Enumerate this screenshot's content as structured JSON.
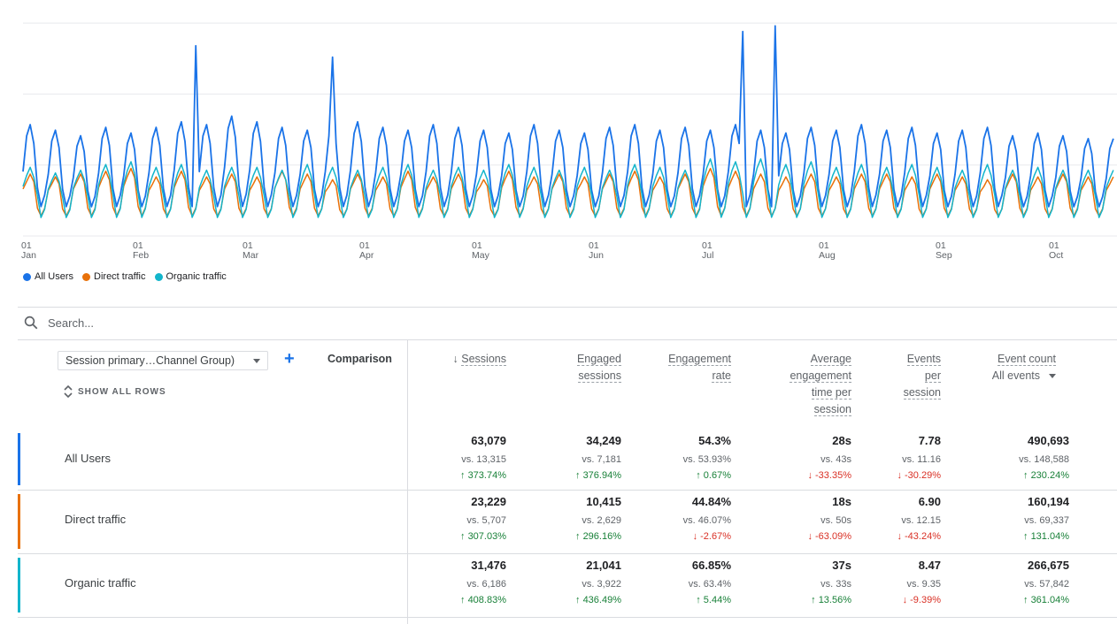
{
  "chart_data": {
    "type": "line",
    "x_ticks": [
      {
        "day": "01",
        "month": "Jan"
      },
      {
        "day": "01",
        "month": "Feb"
      },
      {
        "day": "01",
        "month": "Mar"
      },
      {
        "day": "01",
        "month": "Apr"
      },
      {
        "day": "01",
        "month": "May"
      },
      {
        "day": "01",
        "month": "Jun"
      },
      {
        "day": "01",
        "month": "Jul"
      },
      {
        "day": "01",
        "month": "Aug"
      },
      {
        "day": "01",
        "month": "Sep"
      },
      {
        "day": "01",
        "month": "Oct"
      }
    ],
    "x_start": "Jan 1",
    "x_end": "Oct 31",
    "y_min": 0,
    "y_max": 5,
    "grid": "horizontal",
    "legend_placement": "bottom-left",
    "series": [
      {
        "name": "All Users",
        "color": "#1a73e8",
        "weekly_peaks": [
          3.9,
          3.7,
          3.5,
          3.8,
          3.6,
          3.8,
          4.0,
          3.9,
          4.2,
          4.0,
          3.8,
          3.7,
          3.9,
          4.0,
          3.8,
          3.7,
          3.9,
          3.8,
          3.7,
          3.6,
          3.9,
          3.7,
          3.6,
          3.8,
          3.9,
          3.7,
          3.8,
          3.7,
          3.9,
          3.7,
          3.6,
          3.8,
          3.7,
          3.9,
          3.7,
          3.8,
          3.6,
          3.7,
          3.8,
          3.5,
          3.6,
          3.5,
          3.4
        ],
        "spikes": [
          {
            "date": "Feb 18",
            "value": 6.7
          },
          {
            "date": "Mar 28",
            "value": 6.3
          },
          {
            "date": "Jul 20",
            "value": 7.2
          },
          {
            "date": "Jul 29",
            "value": 7.4
          }
        ]
      },
      {
        "name": "Direct traffic",
        "color": "#e8710a",
        "weekly_peaks": [
          2.2,
          2.1,
          2.2,
          2.3,
          2.4,
          2.1,
          2.3,
          2.1,
          2.2,
          2.1,
          2.3,
          2.2,
          2.0,
          2.2,
          2.1,
          2.3,
          2.1,
          2.2,
          2.0,
          2.3,
          2.1,
          2.2,
          2.1,
          2.2,
          2.3,
          2.1,
          2.2,
          2.4,
          2.3,
          2.2,
          2.1,
          2.2,
          2.1,
          2.2,
          2.2,
          2.1,
          2.2,
          2.1,
          2.0,
          2.2,
          2.1,
          2.2,
          2.1
        ]
      },
      {
        "name": "Organic traffic",
        "color": "#12b5cb",
        "weekly_peaks": [
          2.5,
          2.3,
          2.4,
          2.6,
          2.7,
          2.5,
          2.6,
          2.4,
          2.5,
          2.5,
          2.4,
          2.6,
          2.5,
          2.4,
          2.5,
          2.6,
          2.4,
          2.5,
          2.4,
          2.6,
          2.5,
          2.4,
          2.5,
          2.4,
          2.6,
          2.5,
          2.4,
          2.8,
          2.7,
          2.8,
          2.6,
          2.7,
          2.5,
          2.6,
          2.5,
          2.6,
          2.5,
          2.4,
          2.6,
          2.4,
          2.5,
          2.4,
          2.4
        ]
      }
    ]
  },
  "search": {
    "placeholder": "Search..."
  },
  "dimension_select": {
    "value": "Session primary…Channel Group)"
  },
  "comparison_label": "Comparison",
  "show_all_rows": "SHOW ALL ROWS",
  "columns": [
    {
      "lines": [
        "Sessions"
      ],
      "sort": "desc"
    },
    {
      "lines": [
        "Engaged",
        "sessions"
      ]
    },
    {
      "lines": [
        "Engagement",
        "rate"
      ]
    },
    {
      "lines": [
        "Average",
        "engagement",
        "time per",
        "session"
      ]
    },
    {
      "lines": [
        "Events",
        "per",
        "session"
      ]
    },
    {
      "lines": [
        "Event count"
      ],
      "sub": "All events"
    }
  ],
  "rows": [
    {
      "label": "All Users",
      "color": "#1a73e8",
      "cells": [
        {
          "value": "63,079",
          "vs": "vs. 13,315",
          "change": "373.74%",
          "dir": "up"
        },
        {
          "value": "34,249",
          "vs": "vs. 7,181",
          "change": "376.94%",
          "dir": "up"
        },
        {
          "value": "54.3%",
          "vs": "vs. 53.93%",
          "change": "0.67%",
          "dir": "up"
        },
        {
          "value": "28s",
          "vs": "vs. 43s",
          "change": "-33.35%",
          "dir": "down"
        },
        {
          "value": "7.78",
          "vs": "vs. 11.16",
          "change": "-30.29%",
          "dir": "down"
        },
        {
          "value": "490,693",
          "vs": "vs. 148,588",
          "change": "230.24%",
          "dir": "up"
        }
      ]
    },
    {
      "label": "Direct traffic",
      "color": "#e8710a",
      "cells": [
        {
          "value": "23,229",
          "vs": "vs. 5,707",
          "change": "307.03%",
          "dir": "up"
        },
        {
          "value": "10,415",
          "vs": "vs. 2,629",
          "change": "296.16%",
          "dir": "up"
        },
        {
          "value": "44.84%",
          "vs": "vs. 46.07%",
          "change": "-2.67%",
          "dir": "down"
        },
        {
          "value": "18s",
          "vs": "vs. 50s",
          "change": "-63.09%",
          "dir": "down"
        },
        {
          "value": "6.90",
          "vs": "vs. 12.15",
          "change": "-43.24%",
          "dir": "down"
        },
        {
          "value": "160,194",
          "vs": "vs. 69,337",
          "change": "131.04%",
          "dir": "up"
        }
      ]
    },
    {
      "label": "Organic traffic",
      "color": "#12b5cb",
      "cells": [
        {
          "value": "31,476",
          "vs": "vs. 6,186",
          "change": "408.83%",
          "dir": "up"
        },
        {
          "value": "21,041",
          "vs": "vs. 3,922",
          "change": "436.49%",
          "dir": "up"
        },
        {
          "value": "66.85%",
          "vs": "vs. 63.4%",
          "change": "5.44%",
          "dir": "up"
        },
        {
          "value": "37s",
          "vs": "vs. 33s",
          "change": "13.56%",
          "dir": "up"
        },
        {
          "value": "8.47",
          "vs": "vs. 9.35",
          "change": "-9.39%",
          "dir": "down"
        },
        {
          "value": "266,675",
          "vs": "vs. 57,842",
          "change": "361.04%",
          "dir": "up"
        }
      ]
    }
  ],
  "icons": {
    "search": "search-icon",
    "add": "plus-icon",
    "expand": "unfold-icon",
    "sort": "arrow-down-icon"
  }
}
